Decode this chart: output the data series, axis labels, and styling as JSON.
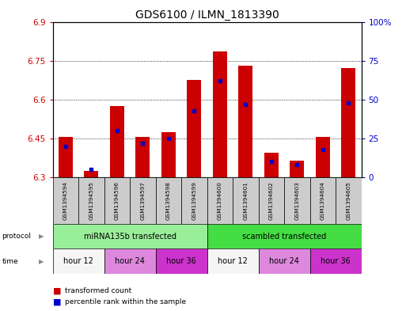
{
  "title": "GDS6100 / ILMN_1813390",
  "samples": [
    "GSM1394594",
    "GSM1394595",
    "GSM1394596",
    "GSM1394597",
    "GSM1394598",
    "GSM1394599",
    "GSM1394600",
    "GSM1394601",
    "GSM1394602",
    "GSM1394603",
    "GSM1394604",
    "GSM1394605"
  ],
  "red_values": [
    6.455,
    6.325,
    6.575,
    6.455,
    6.475,
    6.675,
    6.785,
    6.73,
    6.395,
    6.365,
    6.455,
    6.72
  ],
  "blue_values_pct": [
    20,
    5,
    30,
    22,
    25,
    43,
    62,
    47,
    10,
    8,
    18,
    48
  ],
  "ymin": 6.3,
  "ymax": 6.9,
  "yticks": [
    6.3,
    6.45,
    6.6,
    6.75,
    6.9
  ],
  "ytick_labels": [
    "6.3",
    "6.45",
    "6.6",
    "6.75",
    "6.9"
  ],
  "right_yticks": [
    0,
    25,
    50,
    75,
    100
  ],
  "right_ytick_labels": [
    "0",
    "25",
    "50",
    "75",
    "100%"
  ],
  "left_axis_color": "#cc0000",
  "right_axis_color": "#0000cc",
  "protocol_groups": [
    {
      "label": "miRNA135b transfected",
      "start": 0,
      "end": 6,
      "color": "#99ee99"
    },
    {
      "label": "scambled transfected",
      "start": 6,
      "end": 12,
      "color": "#44dd44"
    }
  ],
  "time_groups": [
    {
      "label": "hour 12",
      "start": 0,
      "end": 2,
      "color": "#f5f5f5"
    },
    {
      "label": "hour 24",
      "start": 2,
      "end": 4,
      "color": "#dd88dd"
    },
    {
      "label": "hour 36",
      "start": 4,
      "end": 6,
      "color": "#cc33cc"
    },
    {
      "label": "hour 12",
      "start": 6,
      "end": 8,
      "color": "#f5f5f5"
    },
    {
      "label": "hour 24",
      "start": 8,
      "end": 10,
      "color": "#dd88dd"
    },
    {
      "label": "hour 36",
      "start": 10,
      "end": 12,
      "color": "#cc33cc"
    }
  ],
  "bar_width": 0.55,
  "background_color": "#ffffff",
  "plot_bg_color": "#ffffff",
  "bar_bottom": 6.3,
  "bar_color": "#cc0000",
  "blue_color": "#0000cc",
  "sample_box_color": "#cccccc"
}
